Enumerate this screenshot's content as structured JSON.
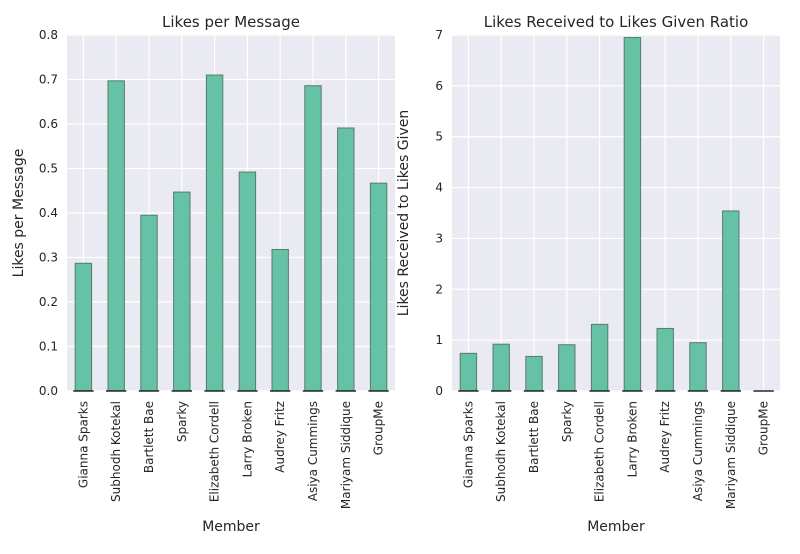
{
  "chart_data": [
    {
      "type": "bar",
      "title": "Likes per Message",
      "xlabel": "Member",
      "ylabel": "Likes per Message",
      "categories": [
        "Gianna Sparks",
        "Subhodh Kotekal",
        "Bartlett Bae",
        "Sparky",
        "Elizabeth Cordell",
        "Larry Broken",
        "Audrey Fritz",
        "Asiya Cummings",
        "Mariyam Siddique",
        "GroupMe"
      ],
      "values": [
        0.287,
        0.697,
        0.395,
        0.447,
        0.71,
        0.492,
        0.318,
        0.686,
        0.591,
        0.467
      ],
      "ylim": [
        0,
        0.8
      ],
      "yticks": [
        "0.0",
        "0.1",
        "0.2",
        "0.3",
        "0.4",
        "0.5",
        "0.6",
        "0.7",
        "0.8"
      ],
      "grid": true,
      "bar_color": "#66c2a5"
    },
    {
      "type": "bar",
      "title": "Likes Received to Likes Given Ratio",
      "xlabel": "Member",
      "ylabel": "Likes Received to Likes Given",
      "categories": [
        "Gianna Sparks",
        "Subhodh Kotekal",
        "Bartlett Bae",
        "Sparky",
        "Elizabeth Cordell",
        "Larry Broken",
        "Audrey Fritz",
        "Asiya Cummings",
        "Mariyam Siddique",
        "GroupMe"
      ],
      "values": [
        0.74,
        0.92,
        0.68,
        0.91,
        1.31,
        6.95,
        1.23,
        0.95,
        3.54,
        0
      ],
      "ylim": [
        0,
        7
      ],
      "yticks": [
        "0",
        "1",
        "2",
        "3",
        "4",
        "5",
        "6",
        "7"
      ],
      "grid": true,
      "bar_color": "#66c2a5"
    }
  ],
  "colors": {
    "plot_background": "#eaeaf2",
    "grid": "#ffffff",
    "bar": "#66c2a5",
    "bar_edge": "#5a7a6e",
    "text": "#262626"
  }
}
